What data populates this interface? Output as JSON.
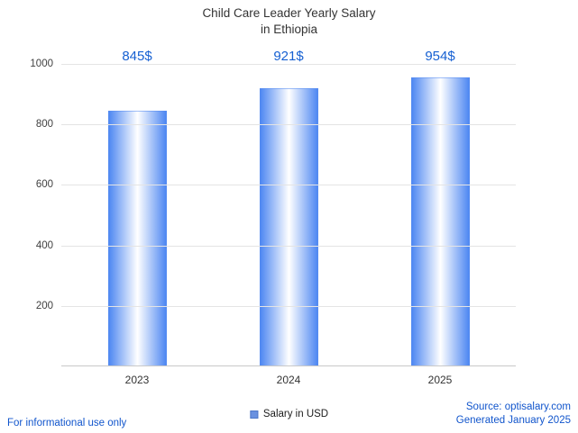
{
  "title": {
    "line1": "Child Care Leader Yearly Salary",
    "line2": "in Ethiopia"
  },
  "legend": {
    "label": "Salary in USD",
    "marker_color": "#6991e0"
  },
  "footer": {
    "disclaimer": "For informational use only",
    "source": "Source: optisalary.com",
    "generated": "Generated January 2025"
  },
  "colors": {
    "bar_edge": "#4f88f2",
    "bar_center": "#ffffff",
    "value_label": "#1660d2",
    "footer_text": "#1155cc",
    "gridline": "#e4e4e4",
    "axis_text": "#3f3f3f"
  },
  "chart_data": {
    "type": "bar",
    "title": "Child Care Leader Yearly Salary in Ethiopia",
    "categories": [
      "2023",
      "2024",
      "2025"
    ],
    "values": [
      845,
      921,
      954
    ],
    "value_labels": [
      "845$",
      "921$",
      "954$"
    ],
    "series_name": "Salary in USD",
    "xlabel": "",
    "ylabel": "",
    "ylim": [
      0,
      1000
    ],
    "yticks": [
      200,
      400,
      600,
      800,
      1000
    ],
    "grid": true,
    "legend_position": "bottom"
  }
}
